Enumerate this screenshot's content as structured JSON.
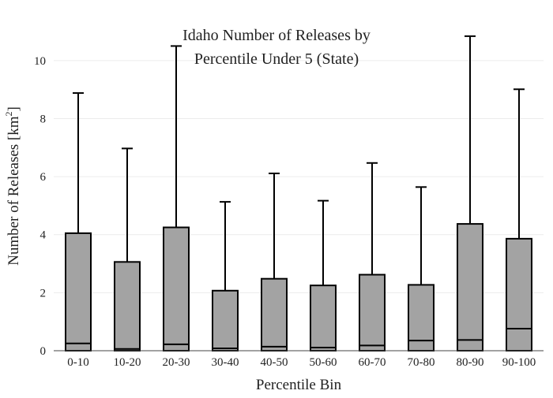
{
  "chart_data": {
    "type": "box",
    "title_lines": [
      "Idaho Number of Releases by",
      "Percentile Under 5 (State)"
    ],
    "xlabel": "Percentile Bin",
    "ylabel_text": "Number of Releases  [km",
    "ylabel_sup": "2",
    "ylabel_close": "]",
    "ylim": [
      0,
      11
    ],
    "yticks": [
      0,
      2,
      4,
      6,
      8,
      10
    ],
    "grid": true,
    "categories": [
      "0-10",
      "10-20",
      "20-30",
      "30-40",
      "40-50",
      "50-60",
      "60-70",
      "70-80",
      "80-90",
      "90-100"
    ],
    "boxes": [
      {
        "low": 0,
        "median": 0.25,
        "q3": 4.05,
        "whisker": 8.88
      },
      {
        "low": 0,
        "median": 0.06,
        "q3": 3.06,
        "whisker": 6.97
      },
      {
        "low": 0,
        "median": 0.22,
        "q3": 4.25,
        "whisker": 10.5
      },
      {
        "low": 0,
        "median": 0.08,
        "q3": 2.07,
        "whisker": 5.13
      },
      {
        "low": 0,
        "median": 0.14,
        "q3": 2.48,
        "whisker": 6.11
      },
      {
        "low": 0,
        "median": 0.11,
        "q3": 2.25,
        "whisker": 5.17
      },
      {
        "low": 0,
        "median": 0.18,
        "q3": 2.62,
        "whisker": 6.47
      },
      {
        "low": 0,
        "median": 0.35,
        "q3": 2.27,
        "whisker": 5.64
      },
      {
        "low": 0,
        "median": 0.37,
        "q3": 4.37,
        "whisker": 10.84
      },
      {
        "low": 0,
        "median": 0.76,
        "q3": 3.86,
        "whisker": 9.01
      }
    ],
    "colors": {
      "box_fill": "#a3a3a3",
      "stroke": "#000000",
      "grid": "#ececec",
      "axis": "#444444"
    }
  }
}
